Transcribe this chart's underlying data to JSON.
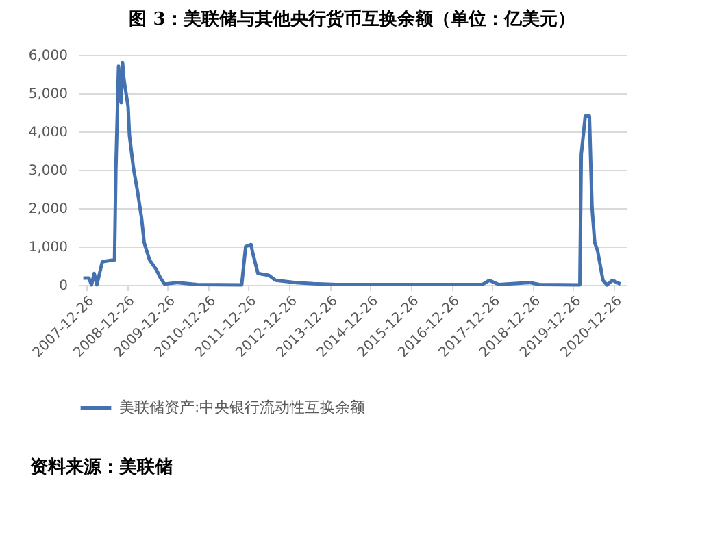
{
  "chart_data": {
    "type": "line",
    "title": "图 3：美联储与其他央行货币互换余额（单位：亿美元）",
    "x": [
      "2007-12-01",
      "2008-01-20",
      "2008-02-13",
      "2008-03-08",
      "2008-04-01",
      "2008-04-25",
      "2008-05-20",
      "2008-06-26",
      "2008-08-26",
      "2008-09-07",
      "2008-09-19",
      "2008-10-13",
      "2008-11-06",
      "2008-11-18",
      "2008-12-01",
      "2009-01-07",
      "2009-01-19",
      "2009-02-24",
      "2009-04-01",
      "2009-05-08",
      "2009-06-01",
      "2009-07-19",
      "2009-09-18",
      "2009-10-25",
      "2009-12-01",
      "2010-04-01",
      "2010-09-19",
      "2011-10-26",
      "2011-12-01",
      "2012-01-19",
      "2012-02-01",
      "2012-03-20",
      "2012-06-26",
      "2012-08-26",
      "2013-02-24",
      "2013-08-01",
      "2014-02-24",
      "2017-10-01",
      "2017-12-01",
      "2018-02-24",
      "2018-12-01",
      "2019-02-24",
      "2020-02-24",
      "2020-03-08",
      "2020-04-13",
      "2020-05-20",
      "2020-06-13",
      "2020-07-07",
      "2020-08-01",
      "2020-09-19",
      "2020-10-25",
      "2020-12-13",
      "2021-02-24"
    ],
    "series": [
      {
        "name": "美联储资产:中央银行流动性互换余额",
        "color": "#4472b0",
        "values": [
          180,
          180,
          0,
          300,
          0,
          300,
          600,
          620,
          650,
          650,
          3000,
          5700,
          4750,
          5800,
          5350,
          4650,
          3900,
          3050,
          2450,
          1750,
          1100,
          650,
          400,
          180,
          20,
          60,
          10,
          0,
          1000,
          1050,
          850,
          300,
          250,
          120,
          60,
          30,
          10,
          10,
          120,
          10,
          60,
          10,
          0,
          3400,
          4400,
          4400,
          2000,
          1100,
          900,
          120,
          0,
          120,
          20
        ]
      }
    ],
    "xlim": [
      "2007-10-15",
      "2021-04-15"
    ],
    "xticks": [
      "2007-12-26",
      "2008-12-26",
      "2009-12-26",
      "2010-12-26",
      "2011-12-26",
      "2012-12-26",
      "2013-12-26",
      "2014-12-26",
      "2015-12-26",
      "2016-12-26",
      "2017-12-26",
      "2018-12-26",
      "2019-12-26",
      "2020-12-26"
    ],
    "ylim": [
      0,
      6000
    ],
    "yticks": [
      {
        "value": 0,
        "label": "0"
      },
      {
        "value": 1000,
        "label": "1,000"
      },
      {
        "value": 2000,
        "label": "2,000"
      },
      {
        "value": 3000,
        "label": "3,000"
      },
      {
        "value": 4000,
        "label": "4,000"
      },
      {
        "value": 5000,
        "label": "5,000"
      },
      {
        "value": 6000,
        "label": "6,000"
      }
    ],
    "grid": "y",
    "legend": "bottom",
    "marker": "none",
    "line_style": "solid",
    "annotations": [
      "资料来源：美联储"
    ]
  }
}
